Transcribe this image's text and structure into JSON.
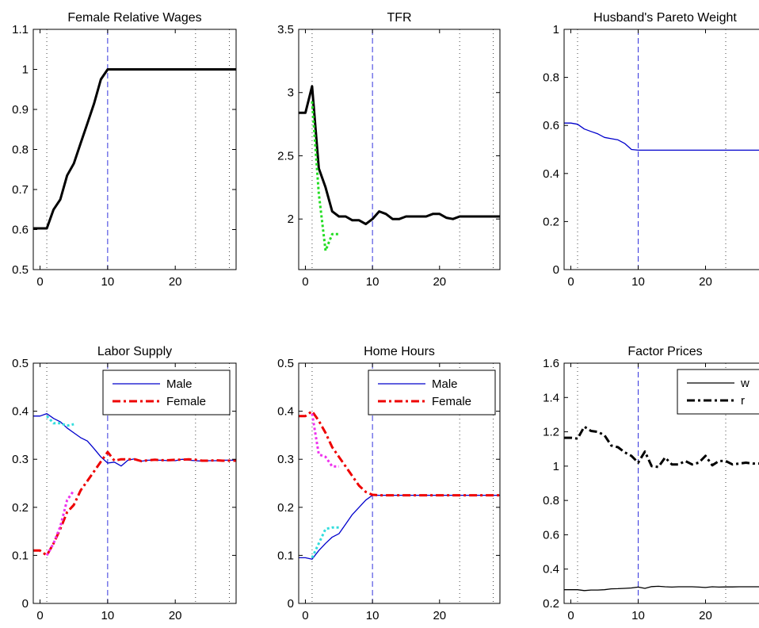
{
  "chart_data": [
    {
      "id": "p1",
      "type": "line",
      "title": "Female Relative Wages",
      "xlim": [
        -1,
        29
      ],
      "ylim": [
        0.5,
        1.1
      ],
      "xticks": [
        0,
        10,
        20
      ],
      "yticks": [
        0.5,
        0.6,
        0.7,
        0.8,
        0.9,
        1,
        1.1
      ],
      "ytick_labels": [
        "0.5",
        "0.6",
        "0.7",
        "0.8",
        "0.9",
        "1",
        "1.1"
      ],
      "vlines_dotted": [
        1,
        23,
        28
      ],
      "vline_dashed": 10,
      "grid": false,
      "series": [
        {
          "color": "#000000",
          "width": 3,
          "dash": "solid",
          "x": [
            -1,
            0,
            1,
            2,
            3,
            4,
            5,
            6,
            7,
            8,
            9,
            10,
            11,
            29
          ],
          "y": [
            0.603,
            0.603,
            0.603,
            0.65,
            0.675,
            0.735,
            0.765,
            0.815,
            0.865,
            0.915,
            0.975,
            1.0,
            1.0,
            1.0
          ]
        }
      ]
    },
    {
      "id": "p2",
      "type": "line",
      "title": "TFR",
      "xlim": [
        -1,
        29
      ],
      "ylim": [
        1.6,
        3.5
      ],
      "xticks": [
        0,
        10,
        20
      ],
      "yticks": [
        2,
        2.5,
        3,
        3.5
      ],
      "ytick_labels": [
        "2",
        "2.5",
        "3",
        "3.5"
      ],
      "vlines_dotted": [
        1,
        23,
        28
      ],
      "vline_dashed": 10,
      "grid": false,
      "series": [
        {
          "color": "#000000",
          "width": 3,
          "dash": "solid",
          "x": [
            -1,
            0,
            1,
            2,
            3,
            4,
            5,
            6,
            7,
            8,
            9,
            10,
            11,
            12,
            13,
            14,
            15,
            16,
            17,
            18,
            19,
            20,
            21,
            22,
            23,
            24,
            25,
            26,
            27,
            28,
            29
          ],
          "y": [
            2.84,
            2.84,
            3.05,
            2.4,
            2.25,
            2.06,
            2.02,
            2.02,
            1.99,
            1.99,
            1.96,
            2.0,
            2.06,
            2.04,
            2.0,
            2.0,
            2.02,
            2.02,
            2.02,
            2.02,
            2.04,
            2.04,
            2.01,
            2.0,
            2.02,
            2.02,
            2.02,
            2.02,
            2.02,
            2.02,
            2.02
          ]
        },
        {
          "color": "#22dd22",
          "width": 3,
          "dash": "3,3",
          "x": [
            1,
            2,
            3,
            4,
            5
          ],
          "y": [
            2.93,
            2.2,
            1.75,
            1.88,
            1.88
          ]
        }
      ]
    },
    {
      "id": "p3",
      "type": "line",
      "title": "Husband's Pareto Weight",
      "xlim": [
        -1,
        29
      ],
      "ylim": [
        0,
        1
      ],
      "xticks": [
        0,
        10,
        20
      ],
      "yticks": [
        0,
        0.2,
        0.4,
        0.6,
        0.8,
        1
      ],
      "ytick_labels": [
        "0",
        "0.2",
        "0.4",
        "0.6",
        "0.8",
        "1"
      ],
      "vlines_dotted": [
        1,
        23,
        28
      ],
      "vline_dashed": 10,
      "grid": false,
      "series": [
        {
          "color": "#0000cc",
          "width": 1.3,
          "dash": "solid",
          "x": [
            -1,
            0,
            1,
            2,
            3,
            4,
            5,
            6,
            7,
            8,
            9,
            10,
            11,
            29
          ],
          "y": [
            0.61,
            0.61,
            0.605,
            0.585,
            0.575,
            0.565,
            0.55,
            0.545,
            0.54,
            0.525,
            0.5,
            0.497,
            0.497,
            0.497
          ]
        }
      ]
    },
    {
      "id": "p4",
      "type": "line",
      "title": "Labor Supply",
      "xlim": [
        -1,
        29
      ],
      "ylim": [
        0,
        0.5
      ],
      "xticks": [
        0,
        10,
        20
      ],
      "yticks": [
        0,
        0.1,
        0.2,
        0.3,
        0.4,
        0.5
      ],
      "ytick_labels": [
        "0",
        "0.1",
        "0.2",
        "0.3",
        "0.4",
        "0.5"
      ],
      "vlines_dotted": [
        1,
        23,
        28
      ],
      "vline_dashed": 10,
      "grid": false,
      "legend": [
        "Male",
        "Female"
      ],
      "series": [
        {
          "name": "Male",
          "color": "#0000cc",
          "width": 1.3,
          "dash": "solid",
          "x": [
            -1,
            0,
            1,
            2,
            3,
            4,
            5,
            6,
            7,
            8,
            9,
            10,
            11,
            12,
            13,
            14,
            15,
            16,
            17,
            18,
            19,
            20,
            21,
            22,
            23,
            24,
            25,
            26,
            27,
            28,
            29
          ],
          "y": [
            0.39,
            0.39,
            0.395,
            0.385,
            0.378,
            0.365,
            0.355,
            0.345,
            0.338,
            0.322,
            0.305,
            0.292,
            0.294,
            0.286,
            0.298,
            0.301,
            0.296,
            0.298,
            0.298,
            0.298,
            0.297,
            0.297,
            0.3,
            0.298,
            0.297,
            0.296,
            0.297,
            0.297,
            0.298,
            0.298,
            0.298
          ]
        },
        {
          "name": "Female",
          "color": "#ee0000",
          "width": 3,
          "dash": "10,4,3,4",
          "x": [
            -1,
            0,
            1,
            2,
            3,
            4,
            5,
            6,
            7,
            8,
            9,
            10,
            11,
            12,
            13,
            14,
            15,
            16,
            17,
            18,
            19,
            20,
            21,
            22,
            23,
            24,
            25,
            26,
            27,
            28,
            29
          ],
          "y": [
            0.11,
            0.11,
            0.1,
            0.125,
            0.155,
            0.19,
            0.205,
            0.235,
            0.255,
            0.275,
            0.295,
            0.315,
            0.297,
            0.3,
            0.3,
            0.3,
            0.296,
            0.298,
            0.299,
            0.298,
            0.298,
            0.299,
            0.299,
            0.3,
            0.299,
            0.297,
            0.297,
            0.298,
            0.297,
            0.297,
            0.297
          ]
        },
        {
          "color": "#33dddd",
          "width": 3,
          "dash": "3,3",
          "x": [
            1,
            2,
            3,
            4,
            5
          ],
          "y": [
            0.39,
            0.375,
            0.375,
            0.37,
            0.373
          ]
        },
        {
          "color": "#ee33ee",
          "width": 3,
          "dash": "3,3",
          "x": [
            1,
            2,
            3,
            4,
            5
          ],
          "y": [
            0.1,
            0.125,
            0.16,
            0.215,
            0.235
          ]
        }
      ]
    },
    {
      "id": "p5",
      "type": "line",
      "title": "Home Hours",
      "xlim": [
        -1,
        29
      ],
      "ylim": [
        0,
        0.5
      ],
      "xticks": [
        0,
        10,
        20
      ],
      "yticks": [
        0,
        0.1,
        0.2,
        0.3,
        0.4,
        0.5
      ],
      "ytick_labels": [
        "0",
        "0.1",
        "0.2",
        "0.3",
        "0.4",
        "0.5"
      ],
      "vlines_dotted": [
        1,
        23,
        28
      ],
      "vline_dashed": 10,
      "grid": false,
      "legend": [
        "Male",
        "Female"
      ],
      "series": [
        {
          "name": "Male",
          "color": "#0000cc",
          "width": 1.3,
          "dash": "solid",
          "x": [
            -1,
            0,
            1,
            2,
            3,
            4,
            5,
            6,
            7,
            8,
            9,
            10,
            11,
            29
          ],
          "y": [
            0.095,
            0.095,
            0.092,
            0.11,
            0.125,
            0.138,
            0.145,
            0.165,
            0.185,
            0.2,
            0.215,
            0.225,
            0.225,
            0.225
          ]
        },
        {
          "name": "Female",
          "color": "#ee0000",
          "width": 3,
          "dash": "10,4,3,4",
          "x": [
            -1,
            0,
            1,
            2,
            3,
            4,
            5,
            6,
            7,
            8,
            9,
            10,
            11,
            29
          ],
          "y": [
            0.39,
            0.39,
            0.4,
            0.38,
            0.355,
            0.325,
            0.305,
            0.285,
            0.265,
            0.245,
            0.232,
            0.226,
            0.225,
            0.225
          ]
        },
        {
          "color": "#ee33ee",
          "width": 3,
          "dash": "3,3",
          "x": [
            1,
            2,
            3,
            4,
            5
          ],
          "y": [
            0.395,
            0.31,
            0.305,
            0.285,
            0.285
          ]
        },
        {
          "color": "#33dddd",
          "width": 3,
          "dash": "3,3",
          "x": [
            1,
            2,
            3,
            4,
            5
          ],
          "y": [
            0.095,
            0.125,
            0.155,
            0.158,
            0.158
          ]
        }
      ]
    },
    {
      "id": "p6",
      "type": "line",
      "title": "Factor Prices",
      "xlim": [
        -1,
        29
      ],
      "ylim": [
        0.2,
        1.6
      ],
      "xticks": [
        0,
        10,
        20
      ],
      "yticks": [
        0.2,
        0.4,
        0.6,
        0.8,
        1,
        1.2,
        1.4,
        1.6
      ],
      "ytick_labels": [
        "0.2",
        "0.4",
        "0.6",
        "0.8",
        "1",
        "1.2",
        "1.4",
        "1.6"
      ],
      "vlines_dotted": [
        1,
        23,
        28
      ],
      "vline_dashed": 10,
      "grid": false,
      "legend": [
        "w",
        "r"
      ],
      "series": [
        {
          "name": "w",
          "color": "#000000",
          "width": 1.3,
          "dash": "solid",
          "x": [
            -1,
            0,
            1,
            2,
            3,
            4,
            5,
            6,
            7,
            8,
            9,
            10,
            11,
            12,
            13,
            14,
            15,
            16,
            17,
            18,
            19,
            20,
            21,
            22,
            23,
            24,
            25,
            26,
            27,
            28,
            29
          ],
          "y": [
            0.28,
            0.28,
            0.28,
            0.275,
            0.278,
            0.278,
            0.28,
            0.285,
            0.286,
            0.288,
            0.29,
            0.295,
            0.288,
            0.298,
            0.3,
            0.297,
            0.295,
            0.297,
            0.297,
            0.297,
            0.295,
            0.293,
            0.297,
            0.295,
            0.296,
            0.296,
            0.297,
            0.297,
            0.297,
            0.297,
            0.297
          ]
        },
        {
          "name": "r",
          "color": "#000000",
          "width": 3,
          "dash": "10,4,3,4",
          "x": [
            -1,
            0,
            1,
            2,
            3,
            4,
            5,
            6,
            7,
            8,
            9,
            10,
            11,
            12,
            13,
            14,
            15,
            16,
            17,
            18,
            19,
            20,
            21,
            22,
            23,
            24,
            25,
            26,
            27,
            28,
            29
          ],
          "y": [
            1.165,
            1.165,
            1.16,
            1.23,
            1.205,
            1.2,
            1.18,
            1.12,
            1.11,
            1.08,
            1.06,
            1.02,
            1.085,
            1.0,
            0.995,
            1.05,
            1.01,
            1.01,
            1.03,
            1.01,
            1.02,
            1.06,
            1.005,
            1.03,
            1.03,
            1.01,
            1.015,
            1.02,
            1.015,
            1.015,
            1.015
          ]
        }
      ]
    }
  ]
}
